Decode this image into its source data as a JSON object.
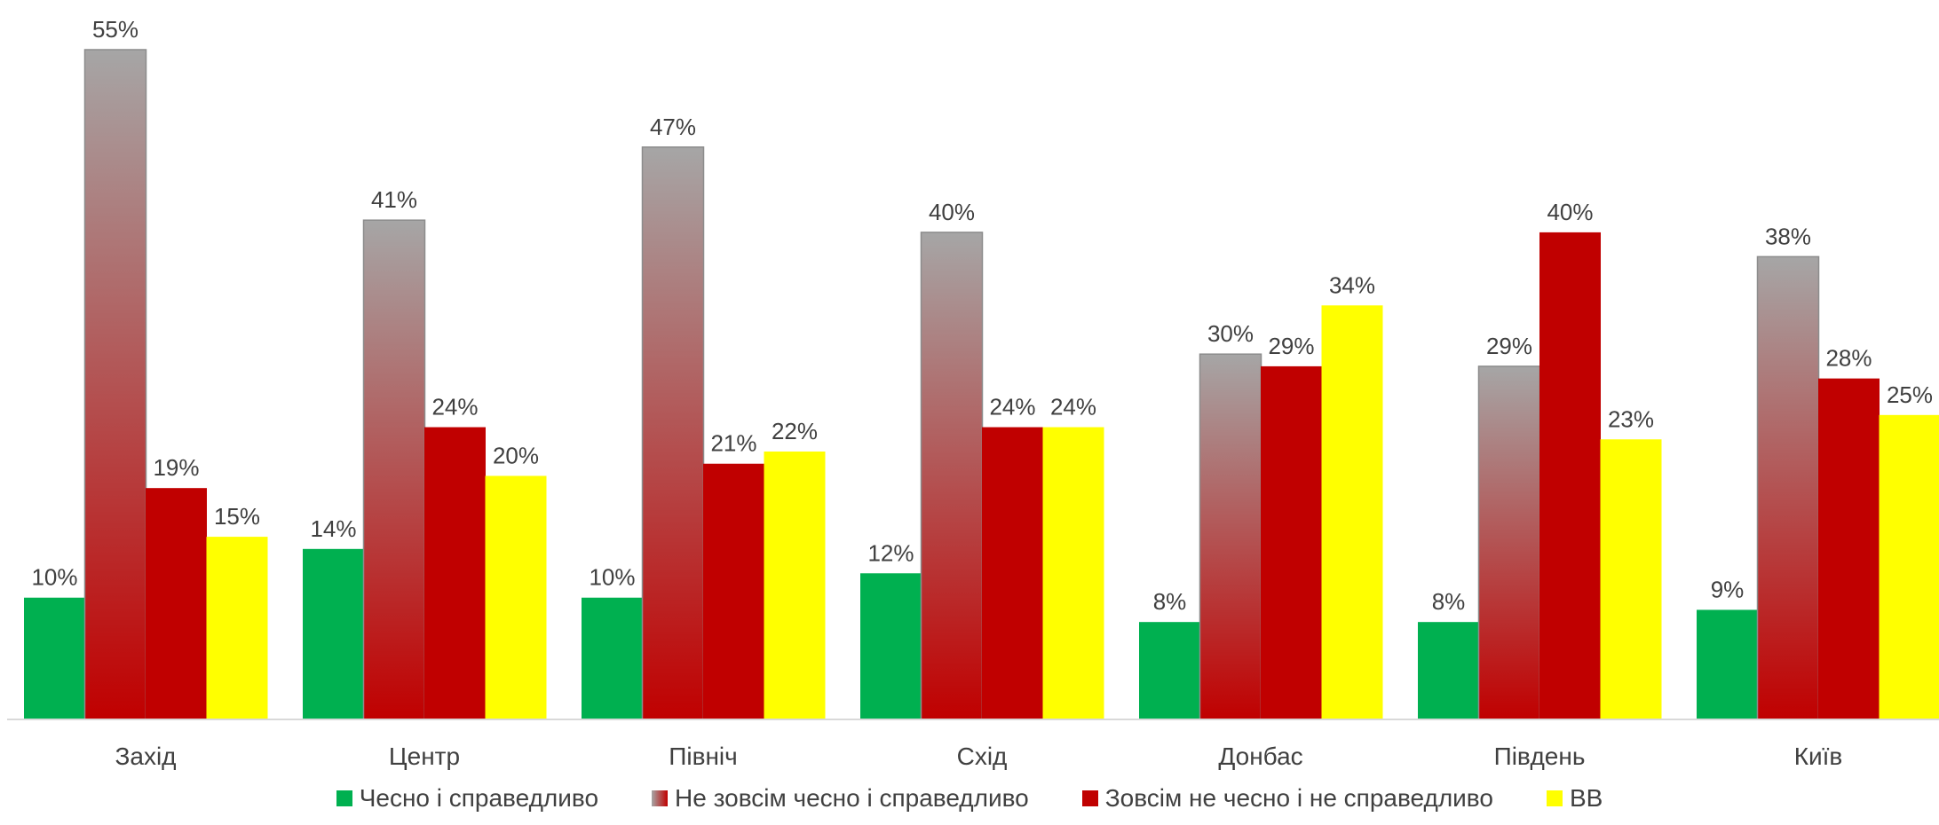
{
  "chart_data": {
    "type": "bar",
    "categories": [
      "Захід",
      "Центр",
      "Північ",
      "Схід",
      "Донбас",
      "Південь",
      "Київ"
    ],
    "series": [
      {
        "name": "Чесно і справедливо",
        "color": "#00B050",
        "values": [
          10,
          14,
          10,
          12,
          8,
          8,
          9
        ]
      },
      {
        "name": "Не зовсім чесно і справедливо",
        "color": "#A6A6A6",
        "gradient_to": "#C00000",
        "values": [
          55,
          41,
          47,
          40,
          30,
          29,
          38
        ]
      },
      {
        "name": "Зовсім не чесно і не справедливо",
        "color": "#C00000",
        "values": [
          19,
          24,
          21,
          24,
          29,
          40,
          28
        ]
      },
      {
        "name": "ВВ",
        "color": "#FFFF00",
        "values": [
          15,
          20,
          22,
          24,
          34,
          23,
          25
        ]
      }
    ],
    "value_suffix": "%",
    "ylim": [
      0,
      55
    ],
    "grid": false,
    "legend_position": "bottom",
    "title": "",
    "xlabel": "",
    "ylabel": ""
  }
}
